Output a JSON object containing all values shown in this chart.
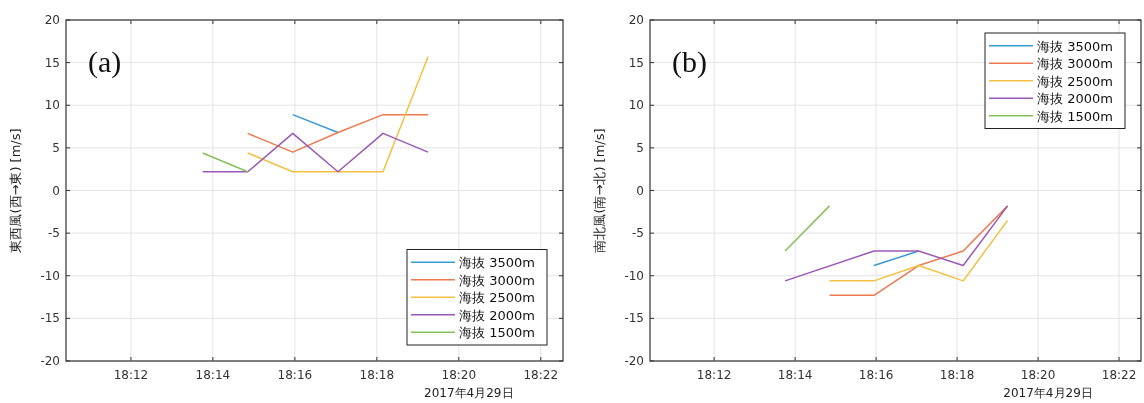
{
  "chart_data": [
    {
      "type": "line",
      "ylabel": "東西風(西→東) [m/s]",
      "xlabel": "2017年4月29日",
      "annotations": [
        "(a)"
      ],
      "x": [
        18.2292,
        18.2475,
        18.2658,
        18.2842,
        18.3025,
        18.3208
      ],
      "xlim": [
        18.1736,
        18.3757
      ],
      "ylim": [
        -20,
        20
      ],
      "xticks": [
        {
          "value": 18.2,
          "label": "18:12"
        },
        {
          "value": 18.23333,
          "label": "18:14"
        },
        {
          "value": 18.26667,
          "label": "18:16"
        },
        {
          "value": 18.3,
          "label": "18:18"
        },
        {
          "value": 18.33333,
          "label": "18:20"
        },
        {
          "value": 18.36667,
          "label": "18:22"
        }
      ],
      "yticks": [
        -20,
        -15,
        -10,
        -5,
        0,
        5,
        10,
        15,
        20
      ],
      "grid": true,
      "legend": "bottom right",
      "series": [
        {
          "name": "海抜 3500m",
          "color": "#3a9ad9",
          "values": [
            null,
            null,
            8.9,
            6.8,
            null,
            null
          ]
        },
        {
          "name": "海抜 3000m",
          "color": "#ee7a4f",
          "values": [
            null,
            6.7,
            4.5,
            6.8,
            8.9,
            8.9
          ]
        },
        {
          "name": "海抜 2500m",
          "color": "#f3c142",
          "values": [
            null,
            4.4,
            2.2,
            2.2,
            2.2,
            15.7
          ]
        },
        {
          "name": "海抜 2000m",
          "color": "#9b59b6",
          "values": [
            2.2,
            2.2,
            6.7,
            2.2,
            6.7,
            4.5
          ]
        },
        {
          "name": "海抜 1500m",
          "color": "#85c15a",
          "values": [
            4.4,
            2.2,
            null,
            null,
            null,
            null
          ]
        }
      ]
    },
    {
      "type": "line",
      "ylabel": "南北風(南→北) [m/s]",
      "xlabel": "2017年4月29日",
      "annotations": [
        "(b)"
      ],
      "x": [
        18.2292,
        18.2475,
        18.2658,
        18.2842,
        18.3025,
        18.3208
      ],
      "xlim": [
        18.1736,
        18.3757
      ],
      "ylim": [
        -20,
        20
      ],
      "xticks": [
        {
          "value": 18.2,
          "label": "18:12"
        },
        {
          "value": 18.23333,
          "label": "18:14"
        },
        {
          "value": 18.26667,
          "label": "18:16"
        },
        {
          "value": 18.3,
          "label": "18:18"
        },
        {
          "value": 18.33333,
          "label": "18:20"
        },
        {
          "value": 18.36667,
          "label": "18:22"
        }
      ],
      "yticks": [
        -20,
        -15,
        -10,
        -5,
        0,
        5,
        10,
        15,
        20
      ],
      "grid": true,
      "legend": "top right",
      "series": [
        {
          "name": "海抜 3500m",
          "color": "#3a9ad9",
          "values": [
            null,
            null,
            -8.8,
            -7.1,
            null,
            null
          ]
        },
        {
          "name": "海抜 3000m",
          "color": "#ee7a4f",
          "values": [
            null,
            -12.3,
            -12.3,
            -8.8,
            -7.1,
            -1.8
          ]
        },
        {
          "name": "海抜 2500m",
          "color": "#f3c142",
          "values": [
            null,
            -10.6,
            -10.6,
            -8.8,
            -10.6,
            -3.5
          ]
        },
        {
          "name": "海抜 2000m",
          "color": "#9b59b6",
          "x": [
            18.2292,
            18.2658,
            18.2842,
            18.3025,
            18.3208
          ],
          "values": [
            -10.6,
            -7.1,
            -7.1,
            -8.8,
            -1.8
          ]
        },
        {
          "name": "海抜 1500m",
          "color": "#85c15a",
          "values": [
            -7.1,
            -1.8,
            null,
            null,
            null,
            null
          ]
        }
      ]
    }
  ]
}
